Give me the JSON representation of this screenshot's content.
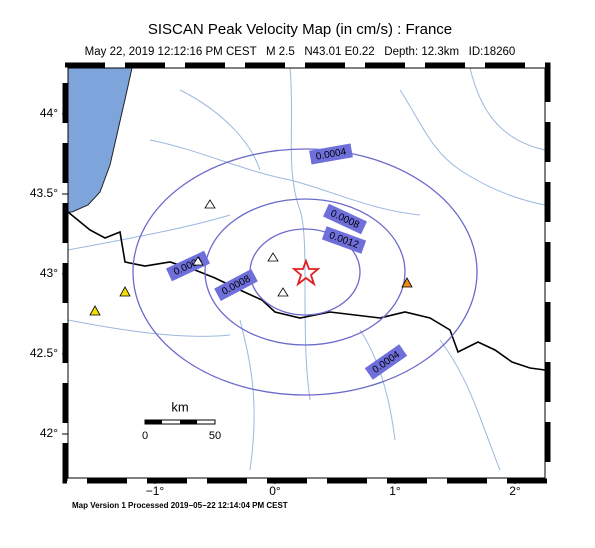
{
  "header": {
    "title": "SISCAN Peak Velocity Map (in cm/s) : France",
    "subtitle": "May 22, 2019 12:12:16 PM CEST   M 2.5   N43.01 E0.22   Depth: 12.3km   ID:18260"
  },
  "map": {
    "lon_ticks": [
      {
        "value": -1,
        "label": "−1°"
      },
      {
        "value": 0,
        "label": "0°"
      },
      {
        "value": 1,
        "label": "1°"
      },
      {
        "value": 2,
        "label": "2°"
      }
    ],
    "lat_ticks": [
      {
        "value": 42,
        "label": "42°"
      },
      {
        "value": 42.5,
        "label": "42.5°"
      },
      {
        "value": 43,
        "label": "43°"
      },
      {
        "value": 43.5,
        "label": "43.5°"
      },
      {
        "value": 44,
        "label": "44°"
      }
    ],
    "contour_labels": [
      "0.0004",
      "0.0008",
      "0.0012",
      "0.0004",
      "0.0008",
      "0.0004"
    ],
    "scale_bar": {
      "unit": "km",
      "start": "0",
      "end": "50"
    }
  },
  "footer": "Map Version 1 Processed 2019−05−22 12:14:04 PM CEST"
}
